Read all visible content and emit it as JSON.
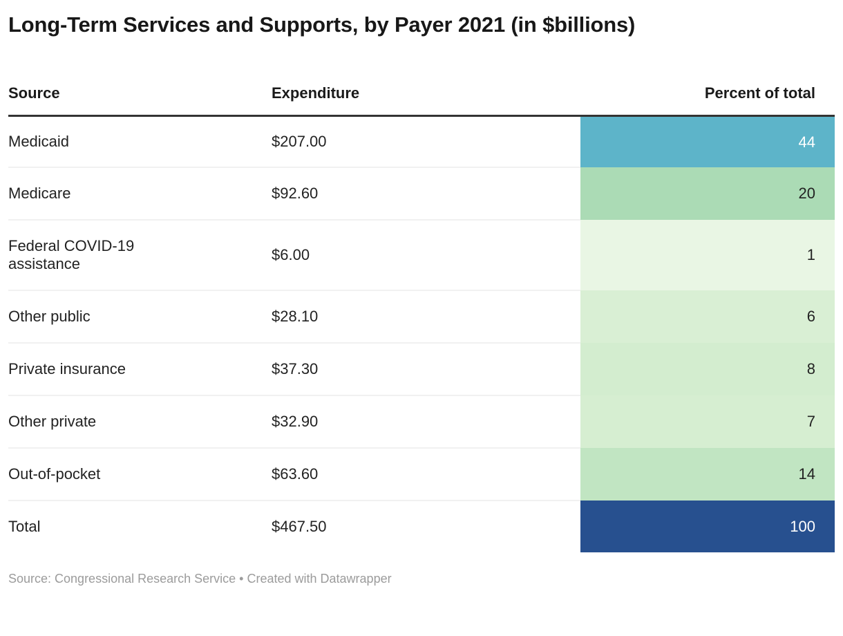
{
  "chart_data": {
    "type": "table",
    "title": "Long-Term Services and Supports, by Payer 2021 (in $billions)",
    "columns": [
      "Source",
      "Expenditure",
      "Percent of total"
    ],
    "heatmap_column": "Percent of total",
    "rows": [
      {
        "source": "Medicaid",
        "expenditure": "$207.00",
        "expenditure_value": 207.0,
        "percent": 44,
        "bg": "#5db4c9",
        "fg": "#ffffff"
      },
      {
        "source": "Medicare",
        "expenditure": "$92.60",
        "expenditure_value": 92.6,
        "percent": 20,
        "bg": "#abdbb5",
        "fg": "#222222"
      },
      {
        "source": "Federal COVID-19 assistance",
        "expenditure": "$6.00",
        "expenditure_value": 6.0,
        "percent": 1,
        "bg": "#e9f6e4",
        "fg": "#222222"
      },
      {
        "source": "Other public",
        "expenditure": "$28.10",
        "expenditure_value": 28.1,
        "percent": 6,
        "bg": "#d9efd4",
        "fg": "#222222"
      },
      {
        "source": "Private insurance",
        "expenditure": "$37.30",
        "expenditure_value": 37.3,
        "percent": 8,
        "bg": "#d3edcf",
        "fg": "#222222"
      },
      {
        "source": "Other private",
        "expenditure": "$32.90",
        "expenditure_value": 32.9,
        "percent": 7,
        "bg": "#d6eed1",
        "fg": "#222222"
      },
      {
        "source": "Out-of-pocket",
        "expenditure": "$63.60",
        "expenditure_value": 63.6,
        "percent": 14,
        "bg": "#c1e5c2",
        "fg": "#222222"
      },
      {
        "source": "Total",
        "expenditure": "$467.50",
        "expenditure_value": 467.5,
        "percent": 100,
        "bg": "#27508f",
        "fg": "#ffffff"
      }
    ],
    "colors": {
      "header_rule": "#333333",
      "row_divider": "#f1f1f1",
      "scale_low": "#e9f6e4",
      "scale_high": "#27508f",
      "footer_text": "#9b9b9b"
    }
  },
  "footer": {
    "source_label": "Source: Congressional Research Service",
    "separator": " • ",
    "created_with": "Created with Datawrapper"
  }
}
